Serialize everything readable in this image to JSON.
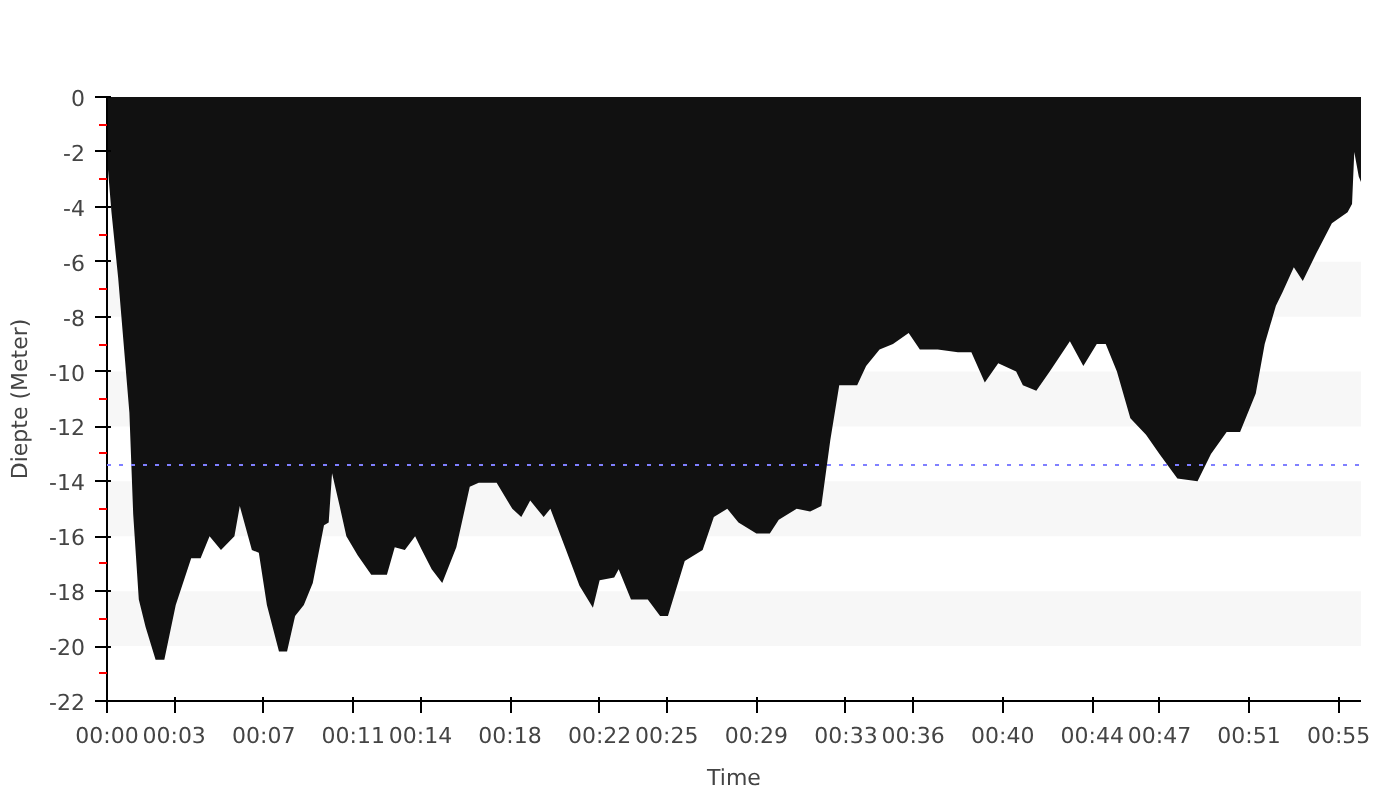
{
  "chart_data": {
    "type": "area",
    "xlabel": "Time",
    "ylabel": "Diepte (Meter)",
    "xlim": [
      0,
      56
    ],
    "ylim": [
      -22,
      0
    ],
    "xticks": [
      {
        "value": 0,
        "label": "00:00"
      },
      {
        "value": 3,
        "label": "00:03"
      },
      {
        "value": 7,
        "label": "00:07"
      },
      {
        "value": 11,
        "label": "00:11"
      },
      {
        "value": 14,
        "label": "00:14"
      },
      {
        "value": 18,
        "label": "00:18"
      },
      {
        "value": 22,
        "label": "00:22"
      },
      {
        "value": 25,
        "label": "00:25"
      },
      {
        "value": 29,
        "label": "00:29"
      },
      {
        "value": 33,
        "label": "00:33"
      },
      {
        "value": 36,
        "label": "00:36"
      },
      {
        "value": 40,
        "label": "00:40"
      },
      {
        "value": 44,
        "label": "00:44"
      },
      {
        "value": 47,
        "label": "00:47"
      },
      {
        "value": 51,
        "label": "00:51"
      },
      {
        "value": 55,
        "label": "00:55"
      }
    ],
    "yticks": [
      0,
      -2,
      -4,
      -6,
      -8,
      -10,
      -12,
      -14,
      -16,
      -18,
      -20,
      -22
    ],
    "bands": [
      {
        "axis": "y",
        "from": -6,
        "to": -8,
        "color": "#f7f7f7"
      },
      {
        "axis": "y",
        "from": -10,
        "to": -12,
        "color": "#f7f7f7"
      },
      {
        "axis": "y",
        "from": -14,
        "to": -16,
        "color": "#f7f7f7"
      },
      {
        "axis": "y",
        "from": -18,
        "to": -20,
        "color": "#f7f7f7"
      }
    ],
    "ref_lines": [
      {
        "axis": "y",
        "value": -13.4,
        "color": "#8080ff",
        "line_style": "dotted"
      }
    ],
    "series": [
      {
        "color": "#111111",
        "x": [
          0,
          0.2,
          0.5,
          1.0,
          1.17,
          1.42,
          1.72,
          2.17,
          2.56,
          3.07,
          3.76,
          4.18,
          4.58,
          5.09,
          5.69,
          5.93,
          6.47,
          6.78,
          7.14,
          7.68,
          8.04,
          8.4,
          8.79,
          9.19,
          9.69,
          9.9,
          10.05,
          10.39,
          10.69,
          11.2,
          11.8,
          12.5,
          12.85,
          13.3,
          13.76,
          14.06,
          14.5,
          14.97,
          15.6,
          16.2,
          16.6,
          17.4,
          18.1,
          18.5,
          18.9,
          19.5,
          19.8,
          20.5,
          21.1,
          21.7,
          22.0,
          22.65,
          22.85,
          23.4,
          24.15,
          24.7,
          25.05,
          25.8,
          26.6,
          27.1,
          27.7,
          28.2,
          29.0,
          29.6,
          30.0,
          30.8,
          31.4,
          31.9,
          32.3,
          32.7,
          33.5,
          33.9,
          34.5,
          35.1,
          35.8,
          36.3,
          37.1,
          38.0,
          38.6,
          39.2,
          39.8,
          40.6,
          40.9,
          41.5,
          42.1,
          43.0,
          43.6,
          44.2,
          44.6,
          45.1,
          45.7,
          46.4,
          47.0,
          47.8,
          48.7,
          49.3,
          50.0,
          50.6,
          51.3,
          51.7,
          52.2,
          52.5,
          53.0,
          53.4,
          54.0,
          54.7,
          55.4,
          55.6,
          55.7,
          55.9,
          56.0
        ],
        "values": [
          -2.2,
          -4.2,
          -6.6,
          -11.5,
          -15.2,
          -18.3,
          -19.3,
          -20.5,
          -20.5,
          -18.5,
          -16.8,
          -16.8,
          -16.0,
          -16.5,
          -16.0,
          -14.9,
          -16.5,
          -16.6,
          -18.5,
          -20.2,
          -20.2,
          -18.9,
          -18.5,
          -17.7,
          -15.6,
          -15.5,
          -13.7,
          -14.9,
          -16.0,
          -16.7,
          -17.4,
          -17.4,
          -16.4,
          -16.5,
          -16.0,
          -16.5,
          -17.2,
          -17.7,
          -16.4,
          -14.2,
          -14.05,
          -14.05,
          -15.0,
          -15.3,
          -14.7,
          -15.3,
          -15.0,
          -16.5,
          -17.8,
          -18.6,
          -17.6,
          -17.5,
          -17.2,
          -18.3,
          -18.3,
          -18.9,
          -18.9,
          -16.9,
          -16.5,
          -15.3,
          -15.0,
          -15.5,
          -15.9,
          -15.9,
          -15.4,
          -15.0,
          -15.1,
          -14.9,
          -12.5,
          -10.5,
          -10.5,
          -9.8,
          -9.2,
          -9.0,
          -8.6,
          -9.2,
          -9.2,
          -9.3,
          -9.3,
          -10.4,
          -9.7,
          -10.0,
          -10.5,
          -10.7,
          -10.0,
          -8.9,
          -9.8,
          -9.0,
          -9.0,
          -10.0,
          -11.7,
          -12.3,
          -13.0,
          -13.9,
          -14.0,
          -13.0,
          -12.2,
          -12.2,
          -10.8,
          -9.0,
          -7.6,
          -7.1,
          -6.2,
          -6.7,
          -5.7,
          -4.6,
          -4.2,
          -3.9,
          -2.0,
          -2.9,
          -3.1
        ]
      }
    ]
  }
}
